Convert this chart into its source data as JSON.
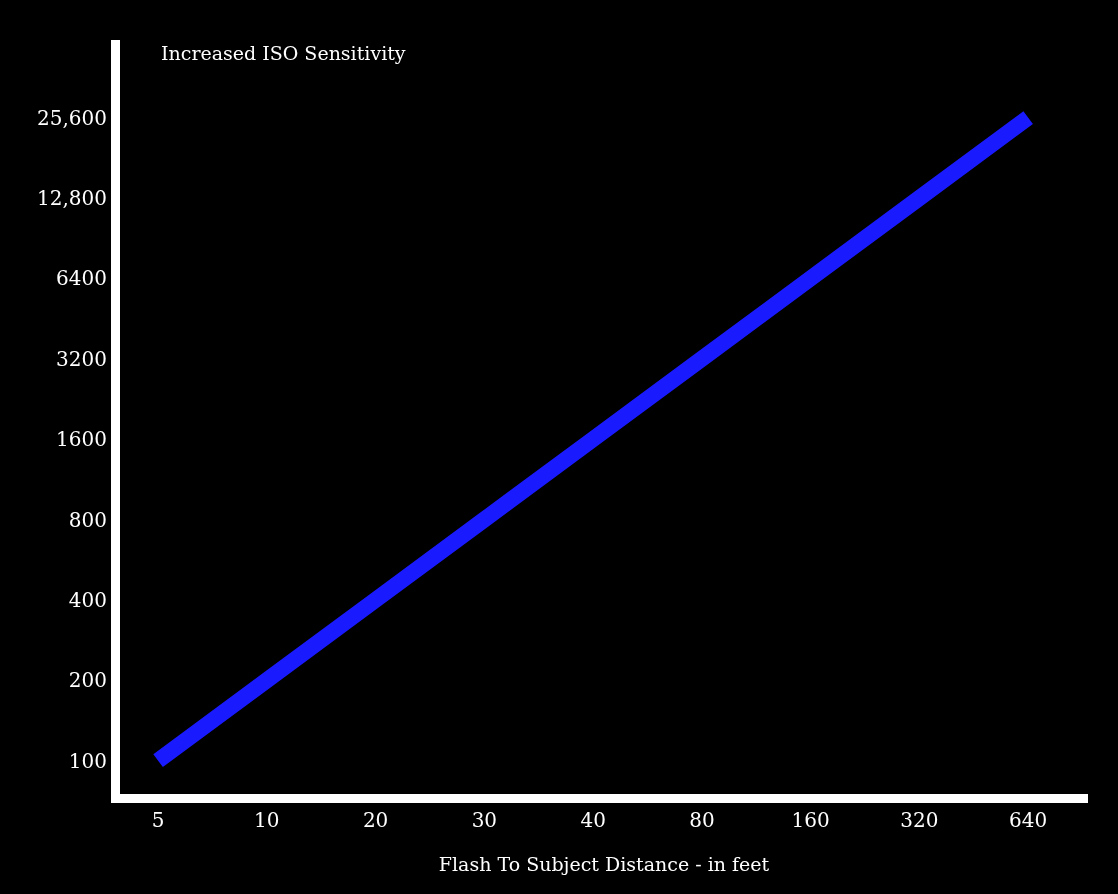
{
  "chart_data": {
    "type": "line",
    "xlabel": "Flash To Subject Distance - in feet",
    "ylabel": "Increased ISO Sensitivity",
    "categories": [
      "5",
      "10",
      "20",
      "30",
      "40",
      "80",
      "160",
      "320",
      "640"
    ],
    "series": [
      {
        "color": "#1a1aff",
        "values": [
          100,
          200,
          400,
          800,
          1600,
          3200,
          6400,
          12800,
          25600
        ]
      }
    ],
    "log": "y",
    "ylim": [
      75,
      50000
    ],
    "yticks": [
      100,
      200,
      400,
      800,
      1600,
      3200,
      6400,
      {
        "value": 12800,
        "label": "12,800"
      },
      {
        "value": 25600,
        "label": "25,600"
      }
    ],
    "grid": false,
    "marker": "none",
    "line_style": "solid"
  }
}
